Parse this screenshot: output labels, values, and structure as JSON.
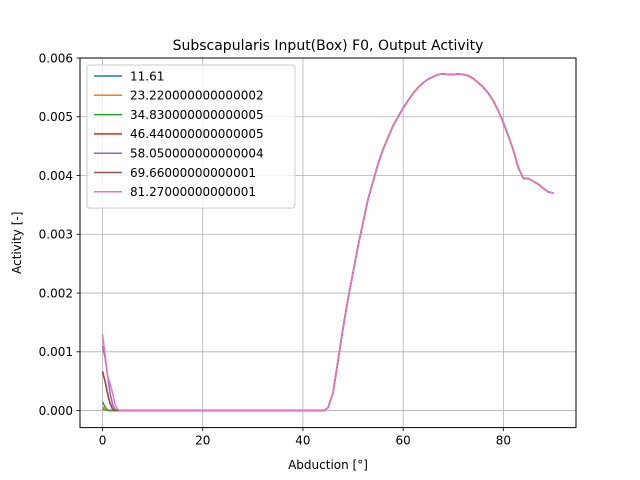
{
  "chart_data": {
    "type": "line",
    "title": "Subscapularis Input(Box) F0, Output Activity",
    "xlabel": "Abduction [°]",
    "ylabel": "Activity [-]",
    "xlim": [
      -4.5,
      94.5
    ],
    "ylim": [
      -0.00029,
      0.006
    ],
    "xticks": [
      0,
      20,
      40,
      60,
      80
    ],
    "xtick_labels": [
      "0",
      "20",
      "40",
      "60",
      "80"
    ],
    "yticks": [
      0,
      0.001,
      0.002,
      0.003,
      0.004,
      0.005,
      0.006
    ],
    "ytick_labels": [
      "0.000",
      "0.001",
      "0.002",
      "0.003",
      "0.004",
      "0.005",
      "0.006"
    ],
    "grid": true,
    "legend_position": "upper-left",
    "shared_curve": {
      "x": [
        44.3,
        45.0,
        46.0,
        47.0,
        48.0,
        49.0,
        50.0,
        51.0,
        52.0,
        53.0,
        54.0,
        55.0,
        56.0,
        57.0,
        58.0,
        59.0,
        60.0,
        61.0,
        62.0,
        63.0,
        64.0,
        65.0,
        66.0,
        67.0,
        68.0,
        69.0,
        70.0,
        71.0,
        72.0,
        73.0,
        74.0,
        75.0,
        76.0,
        77.0,
        78.0,
        79.0,
        80.0,
        81.0,
        82.0,
        83.0,
        84.0,
        85.0,
        86.0,
        87.0,
        88.0,
        89.0,
        90.0
      ],
      "y": [
        0.0,
        5e-05,
        0.0003,
        0.00085,
        0.0014,
        0.0019,
        0.00235,
        0.0028,
        0.0032,
        0.0036,
        0.0039,
        0.0042,
        0.00445,
        0.00465,
        0.00485,
        0.005,
        0.00515,
        0.00528,
        0.0054,
        0.0055,
        0.00558,
        0.00564,
        0.00568,
        0.00572,
        0.00573,
        0.00572,
        0.00572,
        0.00573,
        0.00572,
        0.0057,
        0.00565,
        0.00558,
        0.0055,
        0.0054,
        0.00527,
        0.0051,
        0.0049,
        0.00467,
        0.00443,
        0.00413,
        0.00395,
        0.00395,
        0.0039,
        0.00385,
        0.00378,
        0.00372,
        0.0037
      ]
    },
    "flat_segment": {
      "x_end": 44.3,
      "y": 0.0
    },
    "series": [
      {
        "name": "11.61",
        "color": "#1f77b4",
        "start": {
          "x": [
            0,
            0.5,
            1.0,
            1.5
          ],
          "y": [
            3e-05,
            1e-05,
            0.0,
            0.0
          ]
        }
      },
      {
        "name": "23.220000000000002",
        "color": "#ff7f0e",
        "start": {
          "x": [
            0,
            0.5,
            1.0,
            1.5
          ],
          "y": [
            6e-05,
            2e-05,
            0.0,
            0.0
          ]
        }
      },
      {
        "name": "34.830000000000005",
        "color": "#2ca02c",
        "start": {
          "x": [
            0,
            0.5,
            1.0,
            1.5,
            2.0
          ],
          "y": [
            0.00015,
            6e-05,
            1e-05,
            0.0,
            0.0
          ]
        }
      },
      {
        "name": "46.440000000000005",
        "color": "#d62728",
        "start": {
          "x": [
            0,
            0.5,
            1.0,
            1.5,
            2.0,
            2.5
          ],
          "y": [
            0.00065,
            0.0005,
            0.0003,
            0.00012,
            2e-05,
            0.0
          ]
        }
      },
      {
        "name": "58.050000000000004",
        "color": "#9467bd",
        "start": {
          "x": [
            0,
            0.5,
            1.0,
            1.5,
            2.0,
            2.5,
            3.0
          ],
          "y": [
            0.0011,
            0.0009,
            0.0006,
            0.0003,
            0.0001,
            2e-05,
            0.0
          ]
        }
      },
      {
        "name": "69.66000000000001",
        "color": "#8c564b",
        "start": {
          "x": [
            0,
            0.5,
            1.0,
            1.5,
            2.0,
            2.5,
            3.0
          ],
          "y": [
            0.00067,
            0.0005,
            0.00028,
            0.00012,
            3e-05,
            0.0,
            0.0
          ]
        }
      },
      {
        "name": "81.27000000000001",
        "color": "#e377c2",
        "start": {
          "x": [
            0,
            0.5,
            1.0,
            1.5,
            2.0,
            2.5,
            3.0,
            3.5
          ],
          "y": [
            0.0013,
            0.00095,
            0.0006,
            0.00045,
            0.0003,
            0.0001,
            2e-05,
            0.0
          ]
        }
      }
    ]
  }
}
